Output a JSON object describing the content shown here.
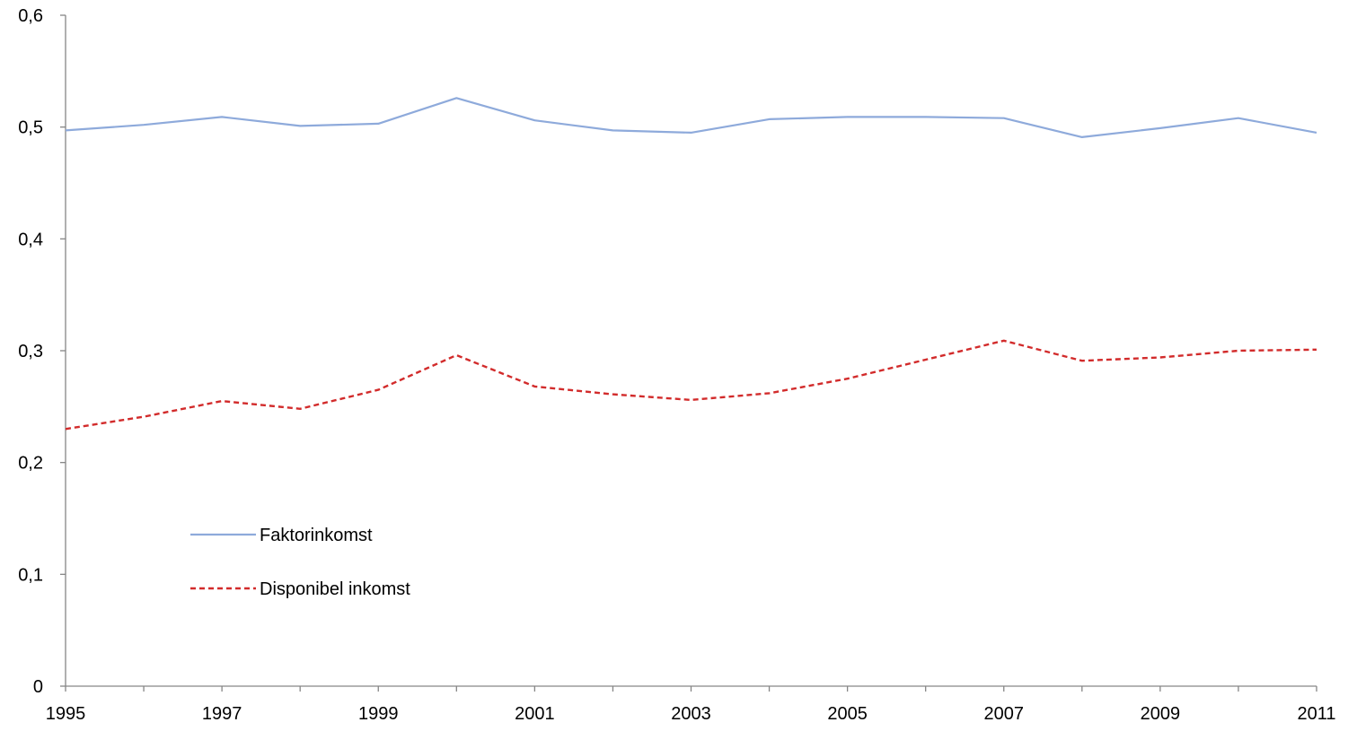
{
  "chart_data": {
    "type": "line",
    "title": "",
    "xlabel": "",
    "ylabel": "",
    "x": [
      1995,
      1996,
      1997,
      1998,
      1999,
      2000,
      2001,
      2002,
      2003,
      2004,
      2005,
      2006,
      2007,
      2008,
      2009,
      2010,
      2011
    ],
    "xlim": [
      1995,
      2011
    ],
    "x_tick_labels": [
      "1995",
      "1997",
      "1999",
      "2001",
      "2003",
      "2005",
      "2007",
      "2009",
      "2011"
    ],
    "ylim": [
      0,
      0.6
    ],
    "y_ticks": [
      0,
      0.1,
      0.2,
      0.3,
      0.4,
      0.5,
      0.6
    ],
    "y_tick_labels": [
      "0",
      "0,1",
      "0,2",
      "0,3",
      "0,4",
      "0,5",
      "0,6"
    ],
    "grid": false,
    "legend_position": "lower-left",
    "series": [
      {
        "name": "Faktorinkomst",
        "color": "#8eaadb",
        "line_style": "solid",
        "values": [
          0.497,
          0.502,
          0.509,
          0.501,
          0.503,
          0.526,
          0.506,
          0.497,
          0.495,
          0.507,
          0.509,
          0.509,
          0.508,
          0.491,
          0.499,
          0.508,
          0.495
        ]
      },
      {
        "name": "Disponibel inkomst",
        "color": "#d22b2b",
        "line_style": "dashed",
        "values": [
          0.23,
          0.241,
          0.255,
          0.248,
          0.265,
          0.296,
          0.268,
          0.261,
          0.256,
          0.262,
          0.275,
          0.292,
          0.309,
          0.291,
          0.294,
          0.3,
          0.301
        ]
      }
    ]
  }
}
